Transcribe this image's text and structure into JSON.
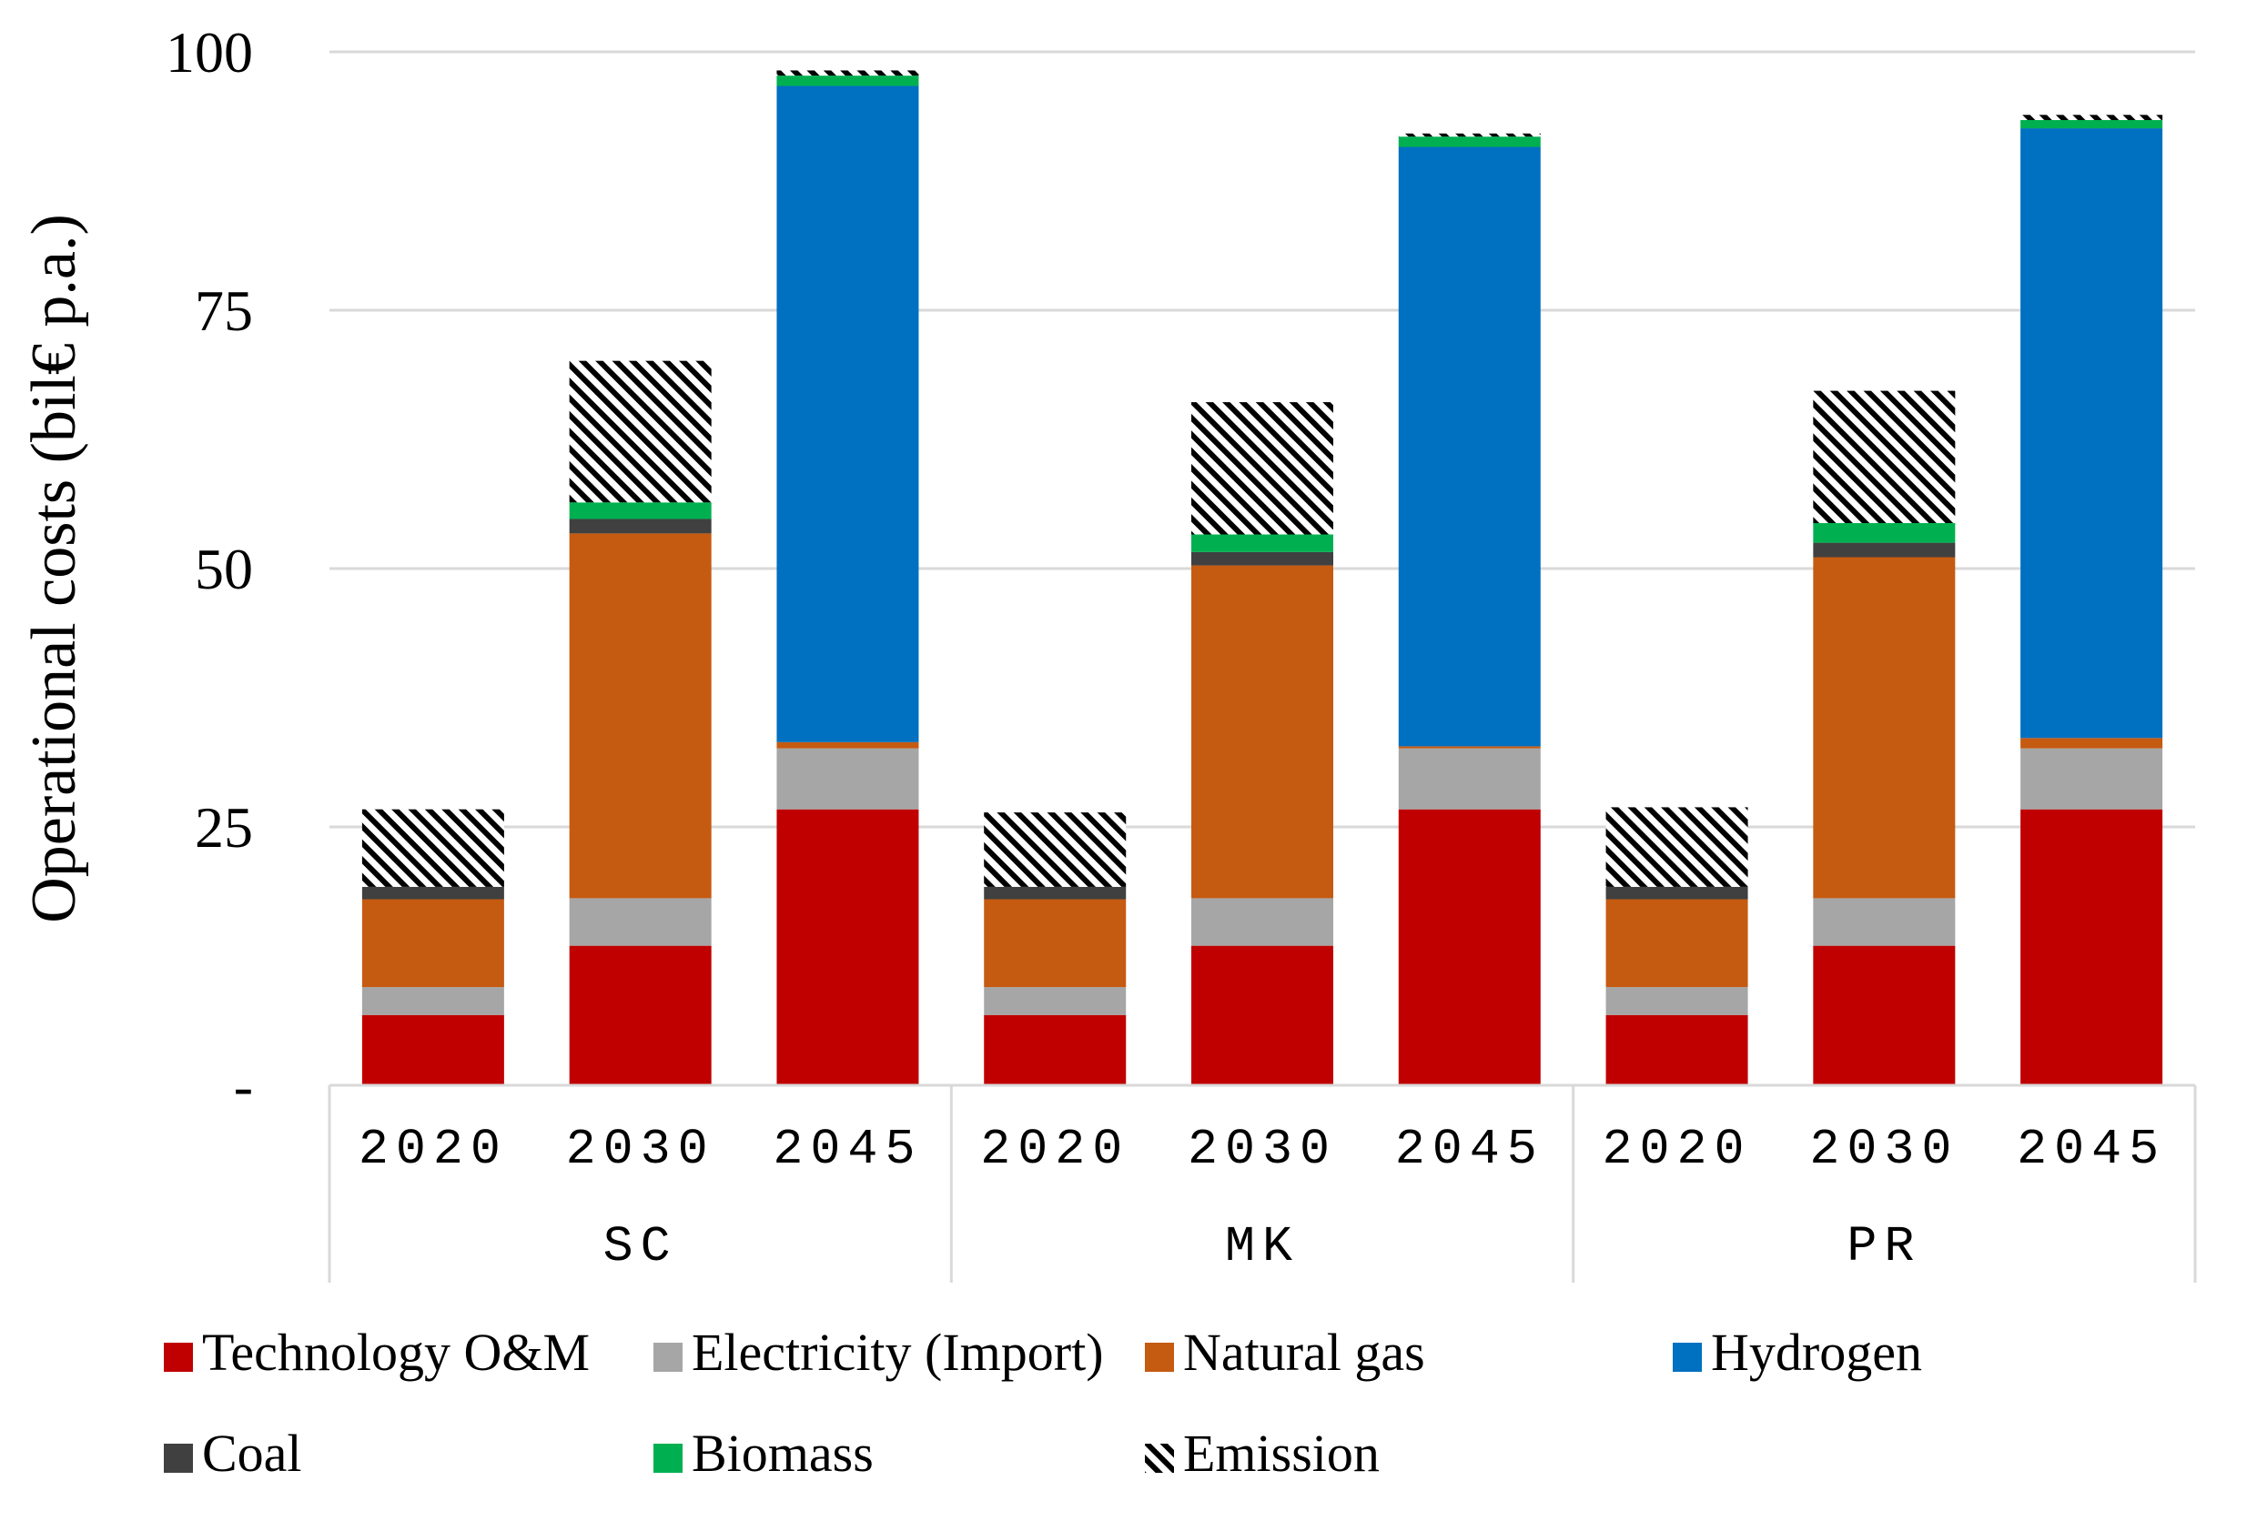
{
  "chart_data": {
    "type": "bar",
    "stacked": true,
    "ylabel": "Operational costs (bil€ p.a.)",
    "ylim": [
      0,
      100
    ],
    "yticks": [
      {
        "value": 0,
        "label": "-"
      },
      {
        "value": 25,
        "label": "25"
      },
      {
        "value": 50,
        "label": "50"
      },
      {
        "value": 75,
        "label": "75"
      },
      {
        "value": 100,
        "label": "100"
      }
    ],
    "grid": true,
    "legend_position": "bottom",
    "groups": [
      {
        "name": "SC",
        "categories": [
          "2020",
          "2030",
          "2045"
        ]
      },
      {
        "name": "MK",
        "categories": [
          "2020",
          "2030",
          "2045"
        ]
      },
      {
        "name": "PR",
        "categories": [
          "2020",
          "2030",
          "2045"
        ]
      }
    ],
    "series": [
      {
        "name": "Technology O&M",
        "color": "#C00000",
        "pattern": "solid",
        "values": [
          6.8,
          13.5,
          26.7,
          6.8,
          13.5,
          26.7,
          6.8,
          13.5,
          26.7
        ]
      },
      {
        "name": "Electricity (Import)",
        "color": "#A6A6A6",
        "pattern": "solid",
        "values": [
          2.7,
          4.6,
          5.9,
          2.7,
          4.6,
          5.9,
          2.7,
          4.6,
          5.9
        ]
      },
      {
        "name": "Natural gas",
        "color": "#C55A11",
        "pattern": "solid",
        "values": [
          8.5,
          35.3,
          0.6,
          8.5,
          32.2,
          0.2,
          8.5,
          33.0,
          1.0
        ]
      },
      {
        "name": "Hydrogen",
        "color": "#0070C0",
        "pattern": "solid",
        "values": [
          0,
          0,
          63.5,
          0,
          0,
          58.0,
          0,
          0,
          59.0
        ]
      },
      {
        "name": "Coal",
        "color": "#404040",
        "pattern": "solid",
        "values": [
          1.2,
          1.4,
          0,
          1.2,
          1.3,
          0,
          1.2,
          1.4,
          0
        ]
      },
      {
        "name": "Biomass",
        "color": "#00B050",
        "pattern": "solid",
        "values": [
          0,
          1.6,
          1.0,
          0,
          1.7,
          1.0,
          0,
          1.9,
          0.8
        ]
      },
      {
        "name": "Emission",
        "color": "#000000",
        "pattern": "hatch",
        "values": [
          7.5,
          13.7,
          0.5,
          7.2,
          12.8,
          0.3,
          7.7,
          12.8,
          0.5
        ]
      }
    ]
  }
}
